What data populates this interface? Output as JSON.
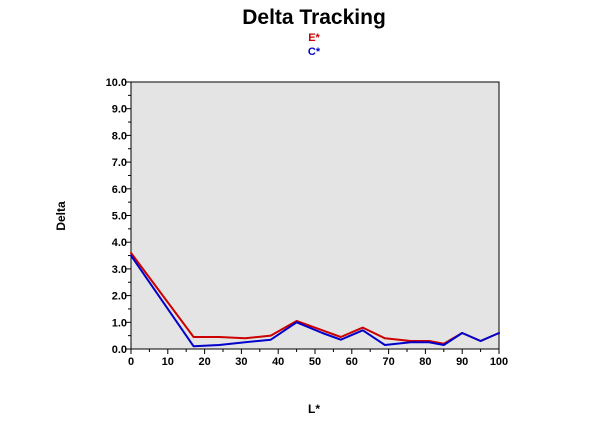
{
  "chart_data": {
    "type": "line",
    "title": "Delta Tracking",
    "xlabel": "L*",
    "ylabel": "Delta",
    "xlim": [
      0,
      100
    ],
    "ylim": [
      0,
      10
    ],
    "x_ticks": [
      "0",
      "10",
      "20",
      "30",
      "40",
      "50",
      "60",
      "70",
      "80",
      "90",
      "100"
    ],
    "y_ticks": [
      "0.0",
      "1.0",
      "2.0",
      "3.0",
      "4.0",
      "5.0",
      "6.0",
      "7.0",
      "8.0",
      "9.0",
      "10.0"
    ],
    "grid": false,
    "plot_background": "#e4e4e4",
    "legend_position": "top-center",
    "series": [
      {
        "name": "E*",
        "color": "#cc0000",
        "x": [
          0,
          17,
          24,
          31,
          38,
          45,
          52,
          57,
          63,
          69,
          76,
          81,
          85,
          90,
          95,
          100
        ],
        "y": [
          3.6,
          0.45,
          0.45,
          0.4,
          0.5,
          1.05,
          0.7,
          0.45,
          0.8,
          0.4,
          0.3,
          0.3,
          0.2,
          0.6,
          0.3,
          0.6
        ]
      },
      {
        "name": "C*",
        "color": "#0000cc",
        "x": [
          0,
          17,
          24,
          31,
          38,
          45,
          52,
          57,
          63,
          69,
          76,
          81,
          85,
          90,
          95,
          100
        ],
        "y": [
          3.5,
          0.1,
          0.15,
          0.25,
          0.35,
          1.0,
          0.6,
          0.35,
          0.7,
          0.15,
          0.25,
          0.25,
          0.15,
          0.6,
          0.3,
          0.6
        ]
      }
    ]
  }
}
